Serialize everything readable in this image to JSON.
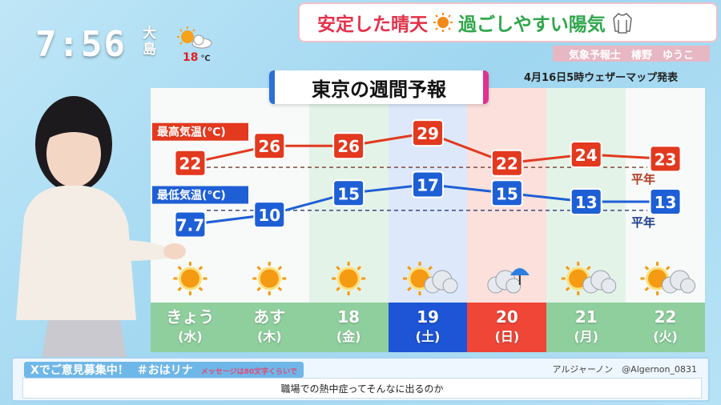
{
  "clock": {
    "time": "7:56",
    "station": "大島",
    "temp": "18",
    "unit": "℃"
  },
  "headline": {
    "part1": "安定した晴天",
    "part2": "過ごしやすい陽気"
  },
  "caster": "気象予報士　椿野　ゆうこ",
  "issued": "4月16日5時ウェザーマップ発表",
  "title": "東京の週間予報",
  "colors": {
    "high": "#e2391f",
    "low": "#1e5fd6",
    "sat": "#1d55d6",
    "sun": "#ef4638",
    "weekday": "#8fcf9d"
  },
  "chart_data": {
    "type": "line",
    "categories": [
      "きょう(水)",
      "あす(木)",
      "18(金)",
      "19(土)",
      "20(日)",
      "21(月)",
      "22(火)"
    ],
    "series": [
      {
        "name": "最高気温(℃)",
        "values": [
          22,
          26,
          26,
          29,
          22,
          24,
          23
        ]
      },
      {
        "name": "最低気温(℃)",
        "values": [
          7.7,
          10,
          15,
          17,
          15,
          13,
          13
        ]
      }
    ],
    "normals": {
      "high_label": "平年",
      "low_label": "平年",
      "high_value": 21,
      "low_value": 11
    },
    "ylim": [
      5,
      32
    ]
  },
  "days": [
    {
      "d": "きょう",
      "w": "(水)",
      "weather": "sunny"
    },
    {
      "d": "あす",
      "w": "(木)",
      "weather": "sunny"
    },
    {
      "d": "18",
      "w": "(金)",
      "weather": "sunny"
    },
    {
      "d": "19",
      "w": "(土)",
      "weather": "sunny-cloudy"
    },
    {
      "d": "20",
      "w": "(日)",
      "weather": "cloudy-rain"
    },
    {
      "d": "21",
      "w": "(月)",
      "weather": "sunny-cloudy"
    },
    {
      "d": "22",
      "w": "(火)",
      "weather": "sunny-cloudy"
    }
  ],
  "message": {
    "head": "Xでご意見募集中！",
    "hashtag": "＃おはリナ",
    "note": "メッセージは80文字くらいで",
    "user": "アルジャーノン　@Algernon_0831",
    "text": "職場での熱中症ってそんなに出るのか"
  }
}
